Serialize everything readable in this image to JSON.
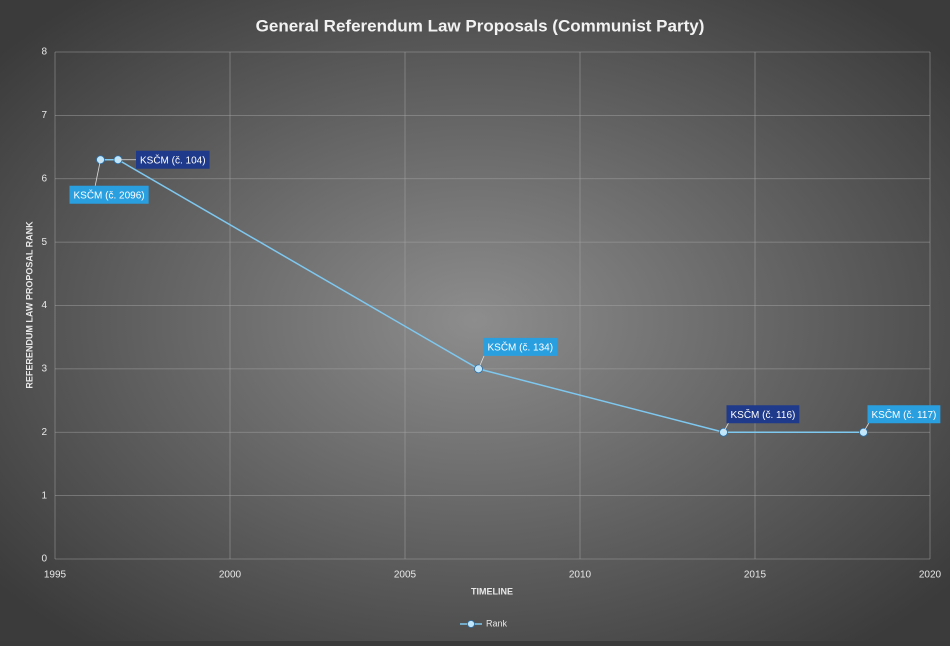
{
  "chart_data": {
    "type": "line",
    "title": "General Referendum Law Proposals (Communist Party)",
    "x_label": "TIMELINE",
    "y_label": "REFERENDUM LAW PROPOSAL RANK",
    "x": [
      1996.3,
      1996.8,
      2007.1,
      2014.1,
      2018.1
    ],
    "series": [
      {
        "name": "Rank",
        "color": "#7ec8f0",
        "values": [
          6.3,
          6.3,
          3,
          2,
          2
        ]
      }
    ],
    "point_labels": [
      "KSČM (č. 2096)",
      "KSČM (č. 104)",
      "KSČM (č. 134)",
      "KSČM (č. 116)",
      "KSČM (č. 117)"
    ],
    "point_label_colors": [
      "#2a9fe0",
      "#1f3a8a",
      "#2a9fe0",
      "#1f3a8a",
      "#2a9fe0"
    ],
    "xlim": [
      1995,
      2020
    ],
    "xticks": [
      1995,
      2000,
      2005,
      2010,
      2015,
      2020
    ],
    "ylim": [
      0,
      8
    ],
    "yticks": [
      0,
      1,
      2,
      3,
      4,
      5,
      6,
      7,
      8
    ],
    "grid": true,
    "legend": "bottom"
  }
}
